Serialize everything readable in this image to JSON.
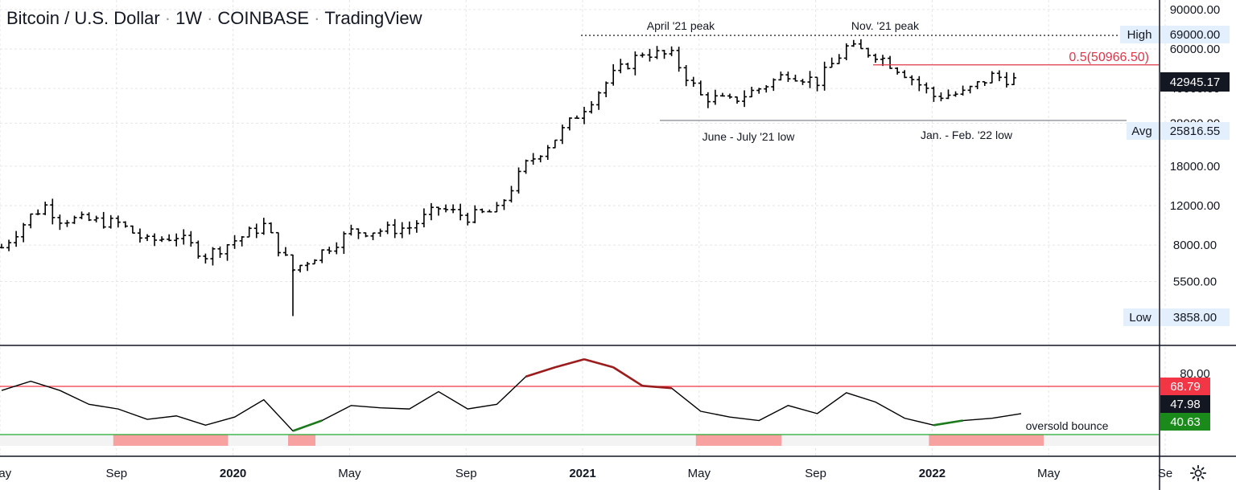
{
  "header": {
    "symbol": "Bitcoin / U.S. Dollar",
    "interval": "1W",
    "exchange": "COINBASE",
    "brand": "TradingView"
  },
  "colors": {
    "up_line": "#000000",
    "high_line": "#000000",
    "resistance": "#e0364a",
    "support": "#787b86",
    "rsi_line": "#000000",
    "rsi_overbought": "#9b1c1c",
    "rsi_oversold": "#1b7a1b",
    "rsi_upper_band": "#f23645",
    "rsi_lower_band": "#22ab2f",
    "band_fill": "#f3f3f3",
    "band_red": "#f7a1a1",
    "price_badge": "#131722",
    "label_bg": "#e3effd"
  },
  "chart_data": [
    {
      "type": "ohlc",
      "title": "Bitcoin / U.S. Dollar · 1W · COINBASE",
      "y_scale": "log",
      "ylim": [
        3500,
        95000
      ],
      "y_ticks": [
        90000,
        60000,
        40000,
        28000,
        18000,
        12000,
        8000,
        5500
      ],
      "y_tick_labels": [
        "90000.00",
        "60000.00",
        "40000.00",
        "28000.00",
        "18000.00",
        "12000.00",
        "8000.00",
        "5500.00"
      ],
      "x_ticks": [
        "May",
        "Sep",
        "2020",
        "May",
        "Sep",
        "2021",
        "May",
        "Sep",
        "2022",
        "May",
        "Se"
      ],
      "x_range": [
        "2019-05",
        "2022-09"
      ],
      "grid": true,
      "weekly_close": [
        {
          "t": "2019-05",
          "c": 7800
        },
        {
          "t": "2019-06",
          "c": 10800
        },
        {
          "t": "2019-06-late",
          "c": 12000
        },
        {
          "t": "2019-07",
          "c": 10500
        },
        {
          "t": "2019-08",
          "c": 10300
        },
        {
          "t": "2019-09",
          "c": 10000
        },
        {
          "t": "2019-10",
          "c": 8300
        },
        {
          "t": "2019-11",
          "c": 8800
        },
        {
          "t": "2019-12",
          "c": 7200
        },
        {
          "t": "2020-01",
          "c": 8400
        },
        {
          "t": "2020-02",
          "c": 9800
        },
        {
          "t": "2020-03",
          "c": 6200
        },
        {
          "t": "2020-04",
          "c": 7500
        },
        {
          "t": "2020-05",
          "c": 9200
        },
        {
          "t": "2020-06",
          "c": 9300
        },
        {
          "t": "2020-07",
          "c": 9600
        },
        {
          "t": "2020-08",
          "c": 11700
        },
        {
          "t": "2020-09",
          "c": 10700
        },
        {
          "t": "2020-10",
          "c": 11400
        },
        {
          "t": "2020-11",
          "c": 18300
        },
        {
          "t": "2020-12",
          "c": 24000
        },
        {
          "t": "2021-01",
          "c": 33000
        },
        {
          "t": "2021-02",
          "c": 46000
        },
        {
          "t": "2021-03",
          "c": 58000
        },
        {
          "t": "2021-04",
          "c": 56000
        },
        {
          "t": "2021-05",
          "c": 37000
        },
        {
          "t": "2021-06",
          "c": 35000
        },
        {
          "t": "2021-07",
          "c": 40000
        },
        {
          "t": "2021-08",
          "c": 47000
        },
        {
          "t": "2021-09",
          "c": 43000
        },
        {
          "t": "2021-10",
          "c": 61000
        },
        {
          "t": "2021-11",
          "c": 57000
        },
        {
          "t": "2021-12",
          "c": 47000
        },
        {
          "t": "2022-01",
          "c": 37000
        },
        {
          "t": "2022-02",
          "c": 38000
        },
        {
          "t": "2022-03",
          "c": 45500
        },
        {
          "t": "2022-04",
          "c": 42945
        }
      ],
      "labels": {
        "high": {
          "tag": "High",
          "value": "69000.00"
        },
        "avg": {
          "tag": "Avg",
          "value": "25816.55"
        },
        "low": {
          "tag": "Low",
          "value": "3858.00"
        },
        "last": "42945.17",
        "fib": "0.5(50966.50)"
      },
      "levels": {
        "high": 69000,
        "fib": 50966.5,
        "support": 28800
      },
      "annotations": [
        {
          "text": "April '21 peak",
          "at": "2021-04"
        },
        {
          "text": "Nov. '21 peak",
          "at": "2021-11"
        },
        {
          "text": "June - July '21 low",
          "at": "2021-07"
        },
        {
          "text": "Jan. - Feb. '22 low",
          "at": "2022-02"
        }
      ]
    },
    {
      "type": "line",
      "name": "RSI",
      "ylim": [
        25,
        100
      ],
      "y_ticks": [
        80
      ],
      "y_tick_labels": [
        "80.00"
      ],
      "upper_band": 68.79,
      "lower_band": 40.63,
      "current": 47.98,
      "upper_label": "68.79",
      "current_label": "47.98",
      "lower_label": "40.63",
      "annotation": "oversold bounce",
      "values": [
        {
          "t": "2019-05",
          "v": 68
        },
        {
          "t": "2019-06",
          "v": 76
        },
        {
          "t": "2019-07",
          "v": 68
        },
        {
          "t": "2019-08",
          "v": 56
        },
        {
          "t": "2019-09",
          "v": 52
        },
        {
          "t": "2019-10",
          "v": 43
        },
        {
          "t": "2019-11",
          "v": 46
        },
        {
          "t": "2019-12",
          "v": 38
        },
        {
          "t": "2020-01",
          "v": 45
        },
        {
          "t": "2020-02",
          "v": 60
        },
        {
          "t": "2020-03",
          "v": 33
        },
        {
          "t": "2020-04",
          "v": 42
        },
        {
          "t": "2020-05",
          "v": 55
        },
        {
          "t": "2020-06",
          "v": 53
        },
        {
          "t": "2020-07",
          "v": 52
        },
        {
          "t": "2020-08",
          "v": 67
        },
        {
          "t": "2020-09",
          "v": 52
        },
        {
          "t": "2020-10",
          "v": 56
        },
        {
          "t": "2020-11",
          "v": 80
        },
        {
          "t": "2020-12",
          "v": 88
        },
        {
          "t": "2021-01",
          "v": 95
        },
        {
          "t": "2021-02",
          "v": 88
        },
        {
          "t": "2021-03",
          "v": 72
        },
        {
          "t": "2021-04",
          "v": 70
        },
        {
          "t": "2021-05",
          "v": 50
        },
        {
          "t": "2021-06",
          "v": 45
        },
        {
          "t": "2021-07",
          "v": 42
        },
        {
          "t": "2021-08",
          "v": 55
        },
        {
          "t": "2021-09",
          "v": 48
        },
        {
          "t": "2021-10",
          "v": 66
        },
        {
          "t": "2021-11",
          "v": 58
        },
        {
          "t": "2021-12",
          "v": 44
        },
        {
          "t": "2022-01",
          "v": 38
        },
        {
          "t": "2022-02",
          "v": 42
        },
        {
          "t": "2022-03",
          "v": 44
        },
        {
          "t": "2022-04",
          "v": 48
        }
      ],
      "shaded_periods": [
        {
          "from": "2019-09",
          "to": "2019-12"
        },
        {
          "from": "2020-03",
          "to": "2020-03"
        },
        {
          "from": "2021-05",
          "to": "2021-07"
        },
        {
          "from": "2022-01",
          "to": "2022-04"
        }
      ]
    }
  ]
}
